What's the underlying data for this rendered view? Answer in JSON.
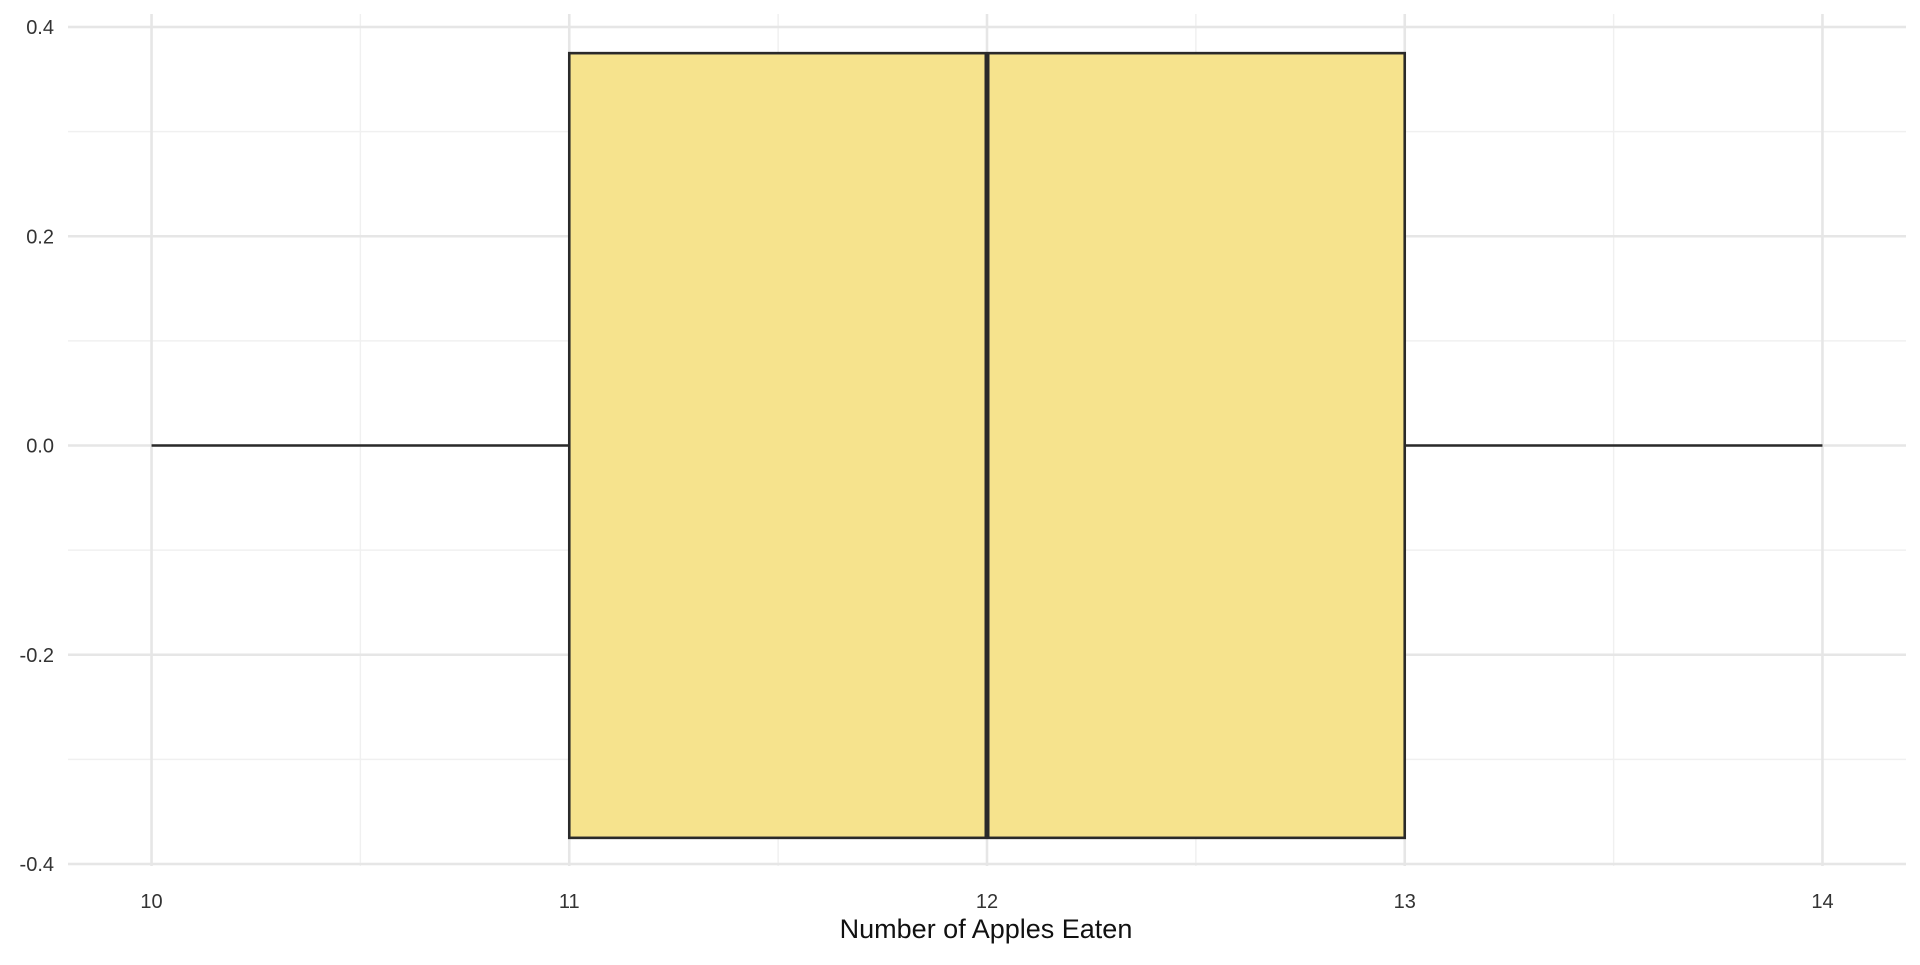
{
  "chart_data": {
    "type": "boxplot",
    "orientation": "horizontal",
    "title": "",
    "xlabel": "Number of Apples Eaten",
    "ylabel": "",
    "xlim": [
      9.8,
      14.2
    ],
    "ylim": [
      -0.4,
      0.4
    ],
    "x_ticks": [
      10,
      11,
      12,
      13,
      14
    ],
    "x_tick_labels": [
      "10",
      "11",
      "12",
      "13",
      "14"
    ],
    "y_ticks": [
      -0.4,
      -0.2,
      0.0,
      0.2,
      0.4
    ],
    "y_tick_labels": [
      "-0.4",
      "-0.2",
      "0.0",
      "0.2",
      "0.4"
    ],
    "grid": true,
    "legend": "none",
    "box": {
      "min": 10,
      "q1": 11,
      "median": 12,
      "q3": 13,
      "max": 14,
      "y_center": 0.0,
      "y_half_height": 0.375
    },
    "colors": {
      "box_fill": "#f6e38d",
      "box_stroke": "#2a2a2a",
      "grid_major": "#e6e6e6",
      "grid_minor": "#f0f0f0",
      "text": "#333333"
    }
  }
}
